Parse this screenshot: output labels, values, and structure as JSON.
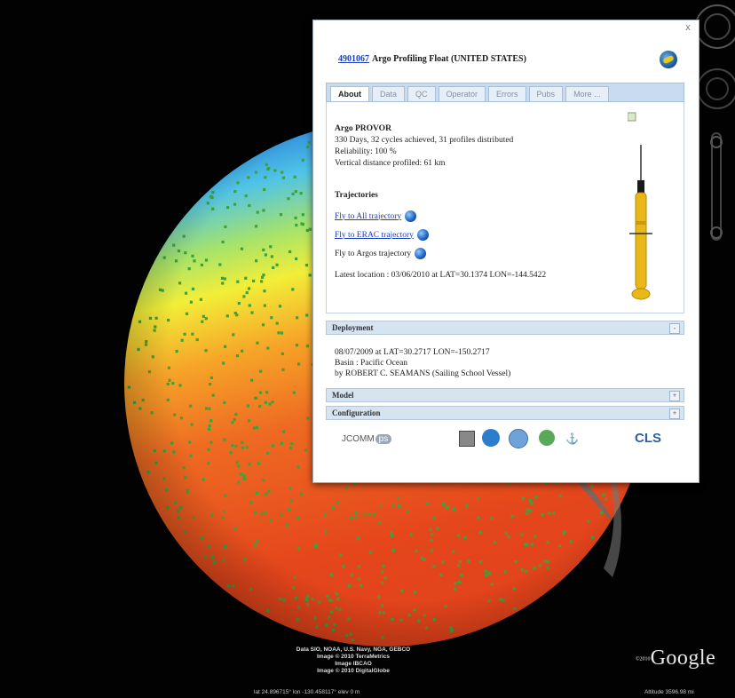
{
  "balloon": {
    "float_id": "4901067",
    "title_rest": "Argo Profiling Float (UNITED STATES)",
    "close_glyph": "x",
    "tabs": [
      {
        "label": "About",
        "active": true
      },
      {
        "label": "Data",
        "active": false
      },
      {
        "label": "QC",
        "active": false
      },
      {
        "label": "Operator",
        "active": false
      },
      {
        "label": "Errors",
        "active": false
      },
      {
        "label": "Pubs",
        "active": false
      },
      {
        "label": "More ...",
        "active": false
      }
    ],
    "about": {
      "heading": "Argo PROVOR",
      "line1": "330 Days, 32 cycles achieved, 31 profiles distributed",
      "line2": "Reliability: 100 %",
      "line3": "Vertical distance profiled: 61 km"
    },
    "trajectories": {
      "heading": "Trajectories",
      "links": [
        {
          "label": "Fly to All trajectory",
          "is_link": true
        },
        {
          "label": "Fly to ERAC trajectory",
          "is_link": true
        },
        {
          "label": "Fly to Argos trajectory",
          "is_link": false
        }
      ]
    },
    "latest_location": "Latest location : 03/06/2010 at LAT=30.1374 LON=-144.5422",
    "sections": {
      "deployment": {
        "label": "Deployment",
        "toggle": "-",
        "line1": "08/07/2009 at LAT=30.2717 LON=-150.2717",
        "line2": "Basin : Pacific Ocean",
        "line3": "by ROBERT C. SEAMANS (Sailing School Vessel)"
      },
      "model": {
        "label": "Model",
        "toggle": "+"
      },
      "configuration": {
        "label": "Configuration",
        "toggle": "+"
      }
    },
    "logos": {
      "jcommops": "JCOMM",
      "jcommops_suffix": "ps",
      "cls": "CLS"
    }
  },
  "map": {
    "attribution": [
      "Data SIO, NOAA, U.S. Navy, NGA, GEBCO",
      "Image © 2010 TerraMetrics",
      "Image IBCAO",
      "Image © 2010 DigitalGlobe"
    ],
    "google_prefix": "©2010",
    "google_logo": "Google",
    "coords": "lat  24.896715°  lon -130.458117°   elev    0 m",
    "altitude": "Altitude  3596.98 mi"
  },
  "colors": {
    "float_dot": "#3ea23a",
    "sst_warm": "#e8421a",
    "sst_cold": "#1f6fd0",
    "link": "#1b3fbf"
  }
}
